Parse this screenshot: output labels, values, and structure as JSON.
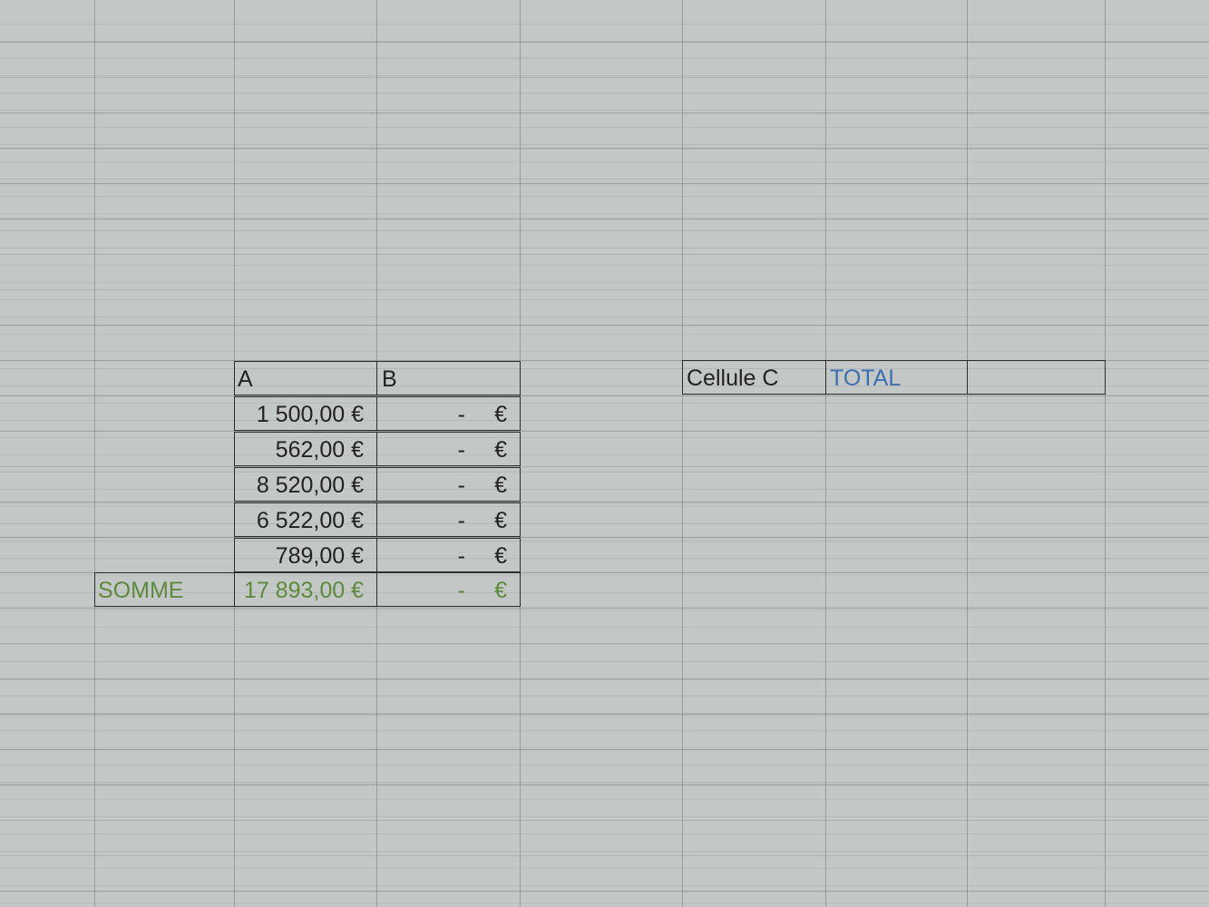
{
  "sheet": {
    "headers": {
      "a": "A",
      "b": "B"
    },
    "rows": [
      {
        "a": "1 500,00 €",
        "b_dash": "-",
        "b_currency": "€"
      },
      {
        "a": "562,00 €",
        "b_dash": "-",
        "b_currency": "€"
      },
      {
        "a": "8 520,00 €",
        "b_dash": "-",
        "b_currency": "€"
      },
      {
        "a": "6 522,00 €",
        "b_dash": "-",
        "b_currency": "€"
      },
      {
        "a": "789,00 €",
        "b_dash": "-",
        "b_currency": "€"
      }
    ],
    "sum": {
      "label": "SOMME",
      "a": "17 893,00 €",
      "b_dash": "-",
      "b_currency": "€"
    },
    "right_table": {
      "c_label": "Cellule C",
      "total_label": "TOTAL",
      "empty": ""
    }
  },
  "colors": {
    "sum_text": "#5d8a3c",
    "total_text": "#3b6fb4",
    "grid_bg": "#c3c7c5"
  }
}
